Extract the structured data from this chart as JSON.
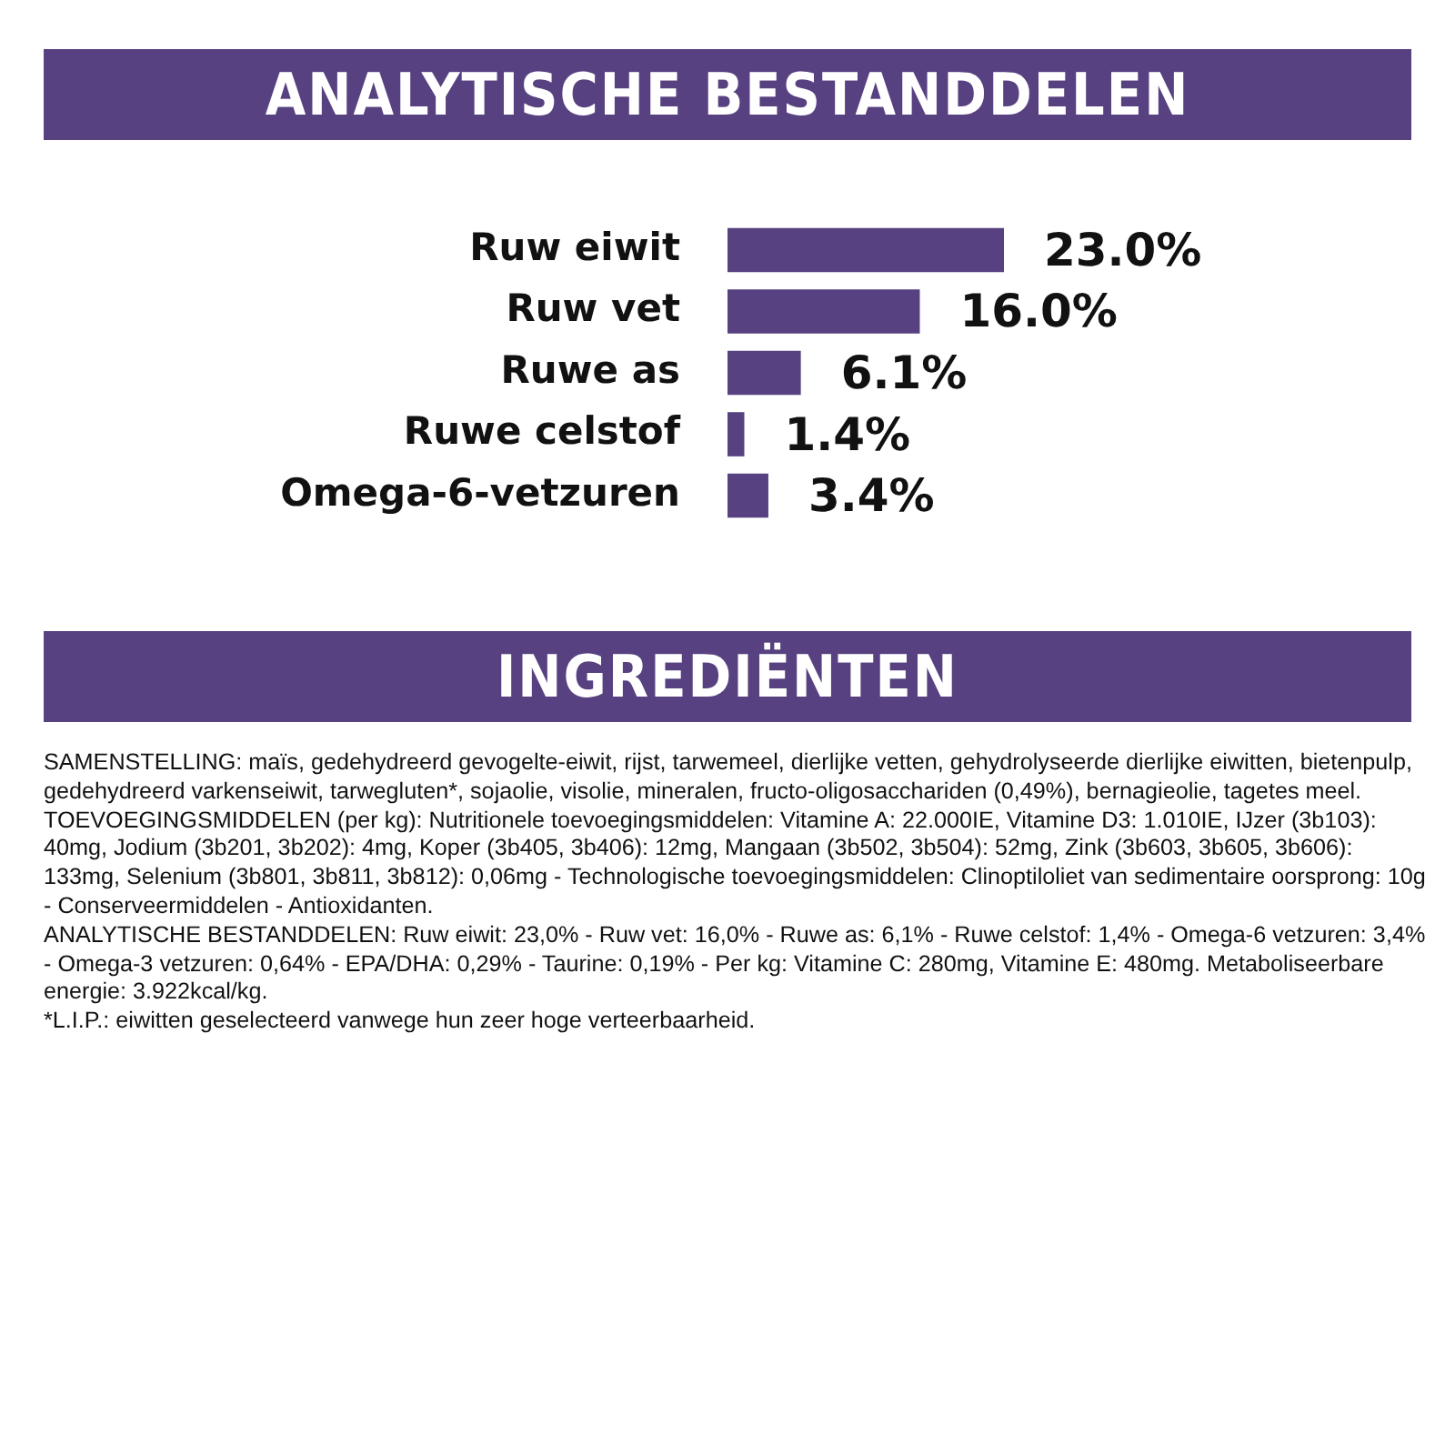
{
  "chart_data": {
    "type": "bar",
    "orientation": "horizontal",
    "title": "ANALYTISCHE BESTANDDELEN",
    "categories": [
      "Ruw eiwit",
      "Ruw vet",
      "Ruwe as",
      "Ruwe celstof",
      "Omega-6-vetzuren"
    ],
    "values": [
      23.0,
      16.0,
      6.1,
      1.4,
      3.4
    ],
    "value_labels": [
      "23.0%",
      "16.0%",
      "6.1%",
      "1.4%",
      "3.4%"
    ],
    "color": "#574180",
    "legend": false,
    "tick_labels": "y",
    "annotations": [
      "INGREDIËNTEN",
      "SAMENSTELLING: maïs, gedehydreerd gevogelte-eiwit, rijst, tarwemeel, dierlijke vetten, gehydrolyseerde dierlijke eiwitten, bietenpulp, gedehydreerd varkenseiwit, tarwegluten*, sojaolie, visolie, mineralen, fructo-oligosacchariden (0,49%), bernagieolie, tagetes meel.",
      "TOEVOEGINGSMIDDELEN (per kg): Nutritionele toevoegingsmiddelen: Vitamine A: 22.000IE, Vitamine D3: 1.010IE, IJzer (3b103): 40mg, Jodium (3b201, 3b202): 4mg, Koper (3b405, 3b406): 12mg, Mangaan (3b502, 3b504): 52mg, Zink (3b603, 3b605, 3b606): 133mg, Selenium (3b801, 3b811, 3b812): 0,06mg - Technologische toevoegingsmiddelen: Clinoptiloliet van sedimentaire oorsprong: 10g - Conserveermiddelen - Antioxidanten.",
      "ANALYTISCHE BESTANDDELEN: Ruw eiwit: 23,0% - Ruw vet: 16,0% - Ruwe as: 6,1% - Ruwe celstof: 1,4% - Omega-6 vetzuren: 3,4% - Omega-3 vetzuren: 0,64% - EPA/DHA: 0,29% - Taurine: 0,19% - Per kg: Vitamine C: 280mg, Vitamine E: 480mg. Metaboliseerbare energie: 3.922kcal/kg.",
      "*L.I.P.: eiwitten geselecteerd vanwege hun zeer hoge verteerbaarheid."
    ]
  }
}
